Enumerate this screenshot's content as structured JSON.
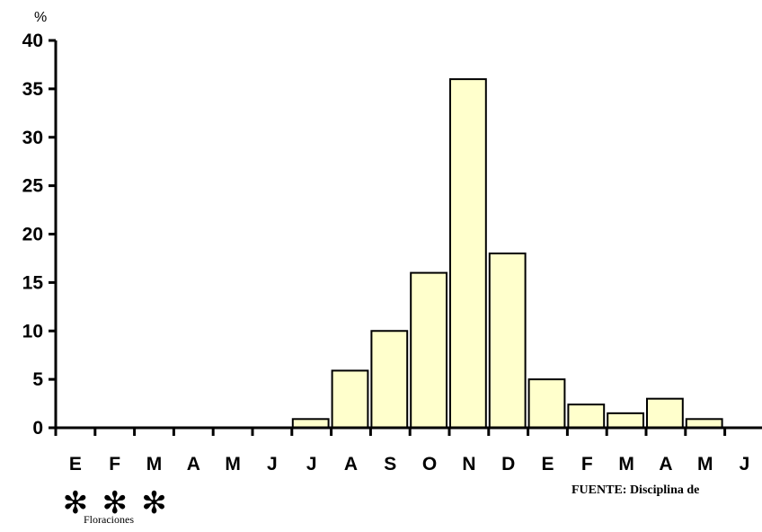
{
  "chart_data": {
    "type": "bar",
    "categories": [
      "E",
      "F",
      "M",
      "A",
      "M",
      "J",
      "J",
      "A",
      "S",
      "O",
      "N",
      "D",
      "E",
      "F",
      "M",
      "A",
      "M",
      "J"
    ],
    "values": [
      0,
      0,
      0,
      0,
      0,
      0,
      0.9,
      5.9,
      10,
      16,
      36,
      18,
      5,
      2.4,
      1.5,
      3,
      0.9,
      0
    ],
    "ylabel": "%",
    "ylim": [
      0,
      40
    ],
    "yticks": [
      0,
      5,
      10,
      15,
      20,
      25,
      30,
      35,
      40
    ],
    "grid": false,
    "bar_color": "#ffffcc",
    "bar_edge_color": "#000000"
  },
  "source_text": "FUENTE: Disciplina de",
  "marker_glyph": "✻",
  "marker_count": 3,
  "marker_label": "Floraciones"
}
